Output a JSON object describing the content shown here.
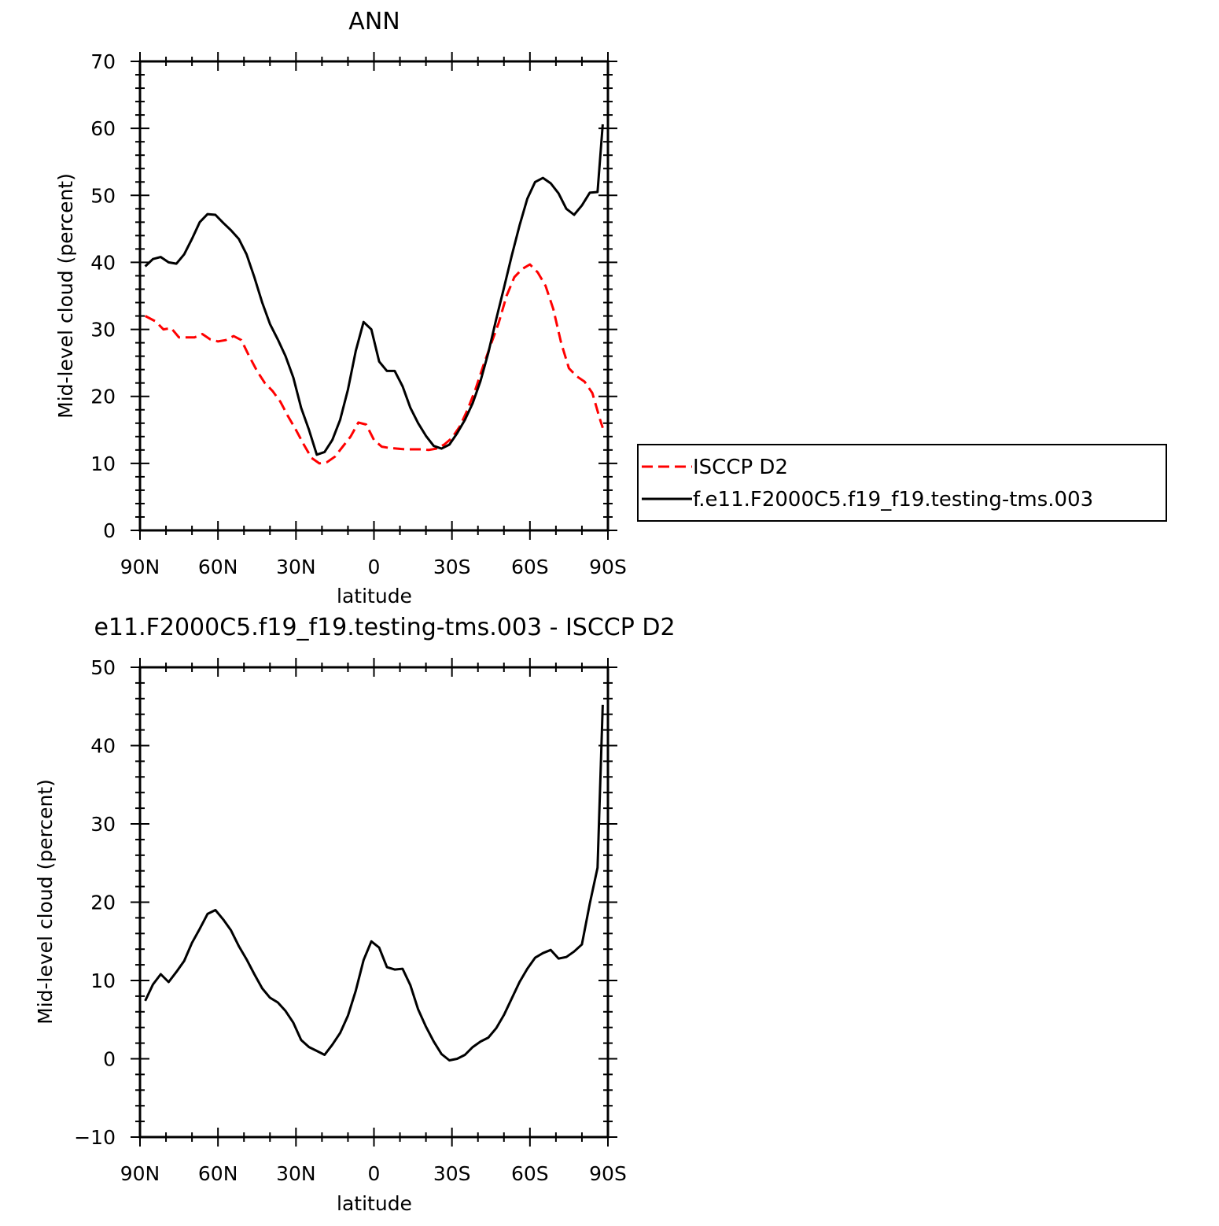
{
  "chart_data": [
    {
      "type": "line",
      "title": "ANN",
      "xlabel": "latitude",
      "ylabel": "Mid-level cloud (percent)",
      "xlim": [
        90,
        -90
      ],
      "ylim": [
        0,
        70
      ],
      "x_tick_values": [
        90,
        60,
        30,
        0,
        -30,
        -60,
        -90
      ],
      "x_tick_labels": [
        "90N",
        "60N",
        "30N",
        "0",
        "30S",
        "60S",
        "90S"
      ],
      "y_ticks": [
        0,
        10,
        20,
        30,
        40,
        50,
        60,
        70
      ],
      "grid": false,
      "legend_position": "right",
      "series": [
        {
          "name": "ISCCP D2",
          "color": "#ff0000",
          "dash": true,
          "x": [
            88,
            84,
            81,
            78,
            75,
            72,
            69,
            66,
            63,
            60,
            57,
            54,
            51,
            48,
            45,
            42,
            39,
            36,
            33,
            30,
            27,
            24,
            21,
            18,
            15,
            12,
            9,
            6,
            3,
            0,
            -3,
            -6,
            -9,
            -12,
            -15,
            -18,
            -21,
            -24,
            -27,
            -30,
            -33,
            -36,
            -39,
            -42,
            -45,
            -48,
            -51,
            -54,
            -57,
            -60,
            -63,
            -66,
            -69,
            -72,
            -75,
            -78,
            -81,
            -84,
            -87,
            -88
          ],
          "y": [
            32,
            31.2,
            30,
            30.2,
            28.8,
            28.8,
            28.8,
            29.3,
            28.5,
            28.2,
            28.4,
            29,
            28.4,
            26,
            23.8,
            22,
            20.8,
            19.2,
            17,
            15,
            12.8,
            10.8,
            10,
            10.2,
            11,
            12.5,
            14,
            16.1,
            15.8,
            13.5,
            12.5,
            12.3,
            12.2,
            12.1,
            12.1,
            12.1,
            12.0,
            12.2,
            12.8,
            13.8,
            15.5,
            18,
            21,
            24.5,
            27.8,
            31,
            35,
            37.8,
            39,
            39.7,
            38.5,
            36.5,
            33,
            28,
            24.2,
            23,
            22.2,
            20.5,
            16.5,
            15.3
          ]
        },
        {
          "name": "f.e11.F2000C5.f19_f19.testing-tms.003",
          "color": "#000000",
          "dash": false,
          "x": [
            88,
            85,
            82,
            79,
            76,
            73,
            70,
            67,
            64,
            61,
            58,
            55,
            52,
            49,
            46,
            43,
            40,
            37,
            34,
            31,
            28,
            25,
            22,
            19,
            16,
            13,
            10,
            7,
            4,
            1,
            -2,
            -5,
            -8,
            -11,
            -14,
            -17,
            -20,
            -23,
            -26,
            -29,
            -32,
            -35,
            -38,
            -41,
            -44,
            -47,
            -50,
            -53,
            -56,
            -59,
            -62,
            -65,
            -68,
            -71,
            -74,
            -77,
            -80,
            -83,
            -86,
            -88
          ],
          "y": [
            39.4,
            40.5,
            40.8,
            40,
            39.8,
            41.2,
            43.5,
            46,
            47.2,
            47.1,
            45.9,
            44.8,
            43.5,
            41.2,
            37.8,
            34,
            30.8,
            28.5,
            26,
            22.8,
            18.3,
            15,
            11.3,
            11.7,
            13.5,
            16.5,
            21,
            26.8,
            31.1,
            30,
            25.2,
            23.8,
            23.8,
            21.5,
            18.3,
            16,
            14.1,
            12.6,
            12.2,
            12.8,
            14.5,
            16.5,
            19,
            22.3,
            26.5,
            31.5,
            36.2,
            41,
            45.5,
            49.5,
            52,
            52.6,
            51.8,
            50.3,
            48,
            47.1,
            48.5,
            50.4,
            50.5,
            60.6
          ]
        }
      ]
    },
    {
      "type": "line",
      "title": "e11.F2000C5.f19_f19.testing-tms.003 - ISCCP D2",
      "xlabel": "latitude",
      "ylabel": "Mid-level cloud (percent)",
      "xlim": [
        90,
        -90
      ],
      "ylim": [
        -10,
        50
      ],
      "x_tick_values": [
        90,
        60,
        30,
        0,
        -30,
        -60,
        -90
      ],
      "x_tick_labels": [
        "90N",
        "60N",
        "30N",
        "0",
        "30S",
        "60S",
        "90S"
      ],
      "y_ticks": [
        -10,
        0,
        10,
        20,
        30,
        40,
        50
      ],
      "grid": false,
      "series": [
        {
          "color": "#000000",
          "dash": false,
          "x": [
            88,
            85,
            82,
            79,
            76,
            73,
            70,
            67,
            64,
            61,
            58,
            55,
            52,
            49,
            46,
            43,
            40,
            37,
            34,
            31,
            28,
            25,
            22,
            19,
            16,
            13,
            10,
            7,
            4,
            1,
            -2,
            -5,
            -8,
            -11,
            -14,
            -17,
            -20,
            -23,
            -26,
            -29,
            -32,
            -35,
            -38,
            -41,
            -44,
            -47,
            -50,
            -53,
            -56,
            -59,
            -62,
            -65,
            -68,
            -71,
            -74,
            -77,
            -80,
            -83,
            -86,
            -88
          ],
          "y": [
            7.4,
            9.5,
            10.8,
            9.8,
            11.1,
            12.5,
            14.8,
            16.6,
            18.5,
            19,
            17.8,
            16.4,
            14.4,
            12.7,
            10.8,
            9.0,
            7.8,
            7.2,
            6.1,
            4.6,
            2.4,
            1.5,
            1.0,
            0.5,
            1.8,
            3.3,
            5.5,
            8.7,
            12.6,
            15,
            14.2,
            11.7,
            11.4,
            11.5,
            9.4,
            6.3,
            4.1,
            2.2,
            0.6,
            -0.2,
            0,
            0.5,
            1.5,
            2.2,
            2.7,
            3.9,
            5.6,
            7.7,
            9.8,
            11.5,
            12.9,
            13.5,
            13.9,
            12.8,
            13,
            13.7,
            14.6,
            19.8,
            24.4,
            45.2
          ]
        }
      ]
    }
  ]
}
